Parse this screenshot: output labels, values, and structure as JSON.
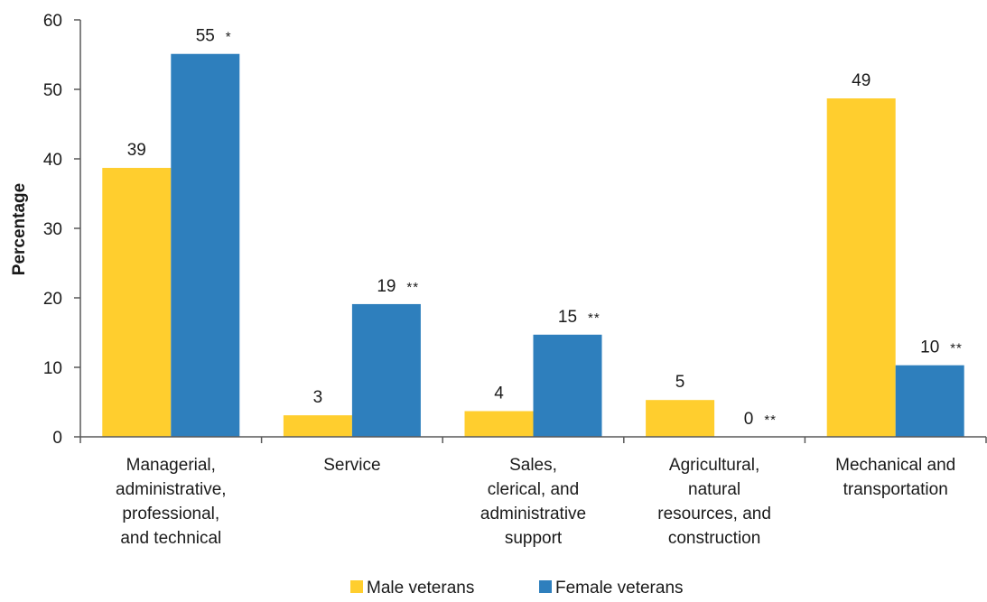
{
  "chart_data": {
    "type": "bar",
    "categories": [
      [
        "Managerial,",
        "administrative,",
        "professional,",
        "and technical"
      ],
      [
        "Service"
      ],
      [
        "Sales,",
        "clerical, and",
        "administrative",
        "support"
      ],
      [
        "Agricultural,",
        "natural",
        "resources, and",
        "construction"
      ],
      [
        "Mechanical and",
        "transportation"
      ]
    ],
    "series": [
      {
        "name": "Male veterans",
        "color": "#FFCE2E",
        "values": [
          38.7,
          3.1,
          3.7,
          5.3,
          48.7
        ],
        "labels": [
          "39",
          "3",
          "4",
          "5",
          "49"
        ],
        "markers": [
          "",
          "",
          "",
          "",
          ""
        ]
      },
      {
        "name": "Female veterans",
        "color": "#2E7FBD",
        "values": [
          55.1,
          19.1,
          14.7,
          0,
          10.3
        ],
        "labels": [
          "55",
          "19",
          "15",
          "0",
          "10"
        ],
        "markers": [
          "*",
          "**",
          "**",
          "**",
          "**"
        ]
      }
    ],
    "ylabel": "Percentage",
    "xlabel": "",
    "ylim": [
      0,
      60
    ],
    "yticks": [
      "0",
      "10",
      "20",
      "30",
      "40",
      "50",
      "60"
    ],
    "grid": false,
    "legend_position": "bottom-center"
  }
}
